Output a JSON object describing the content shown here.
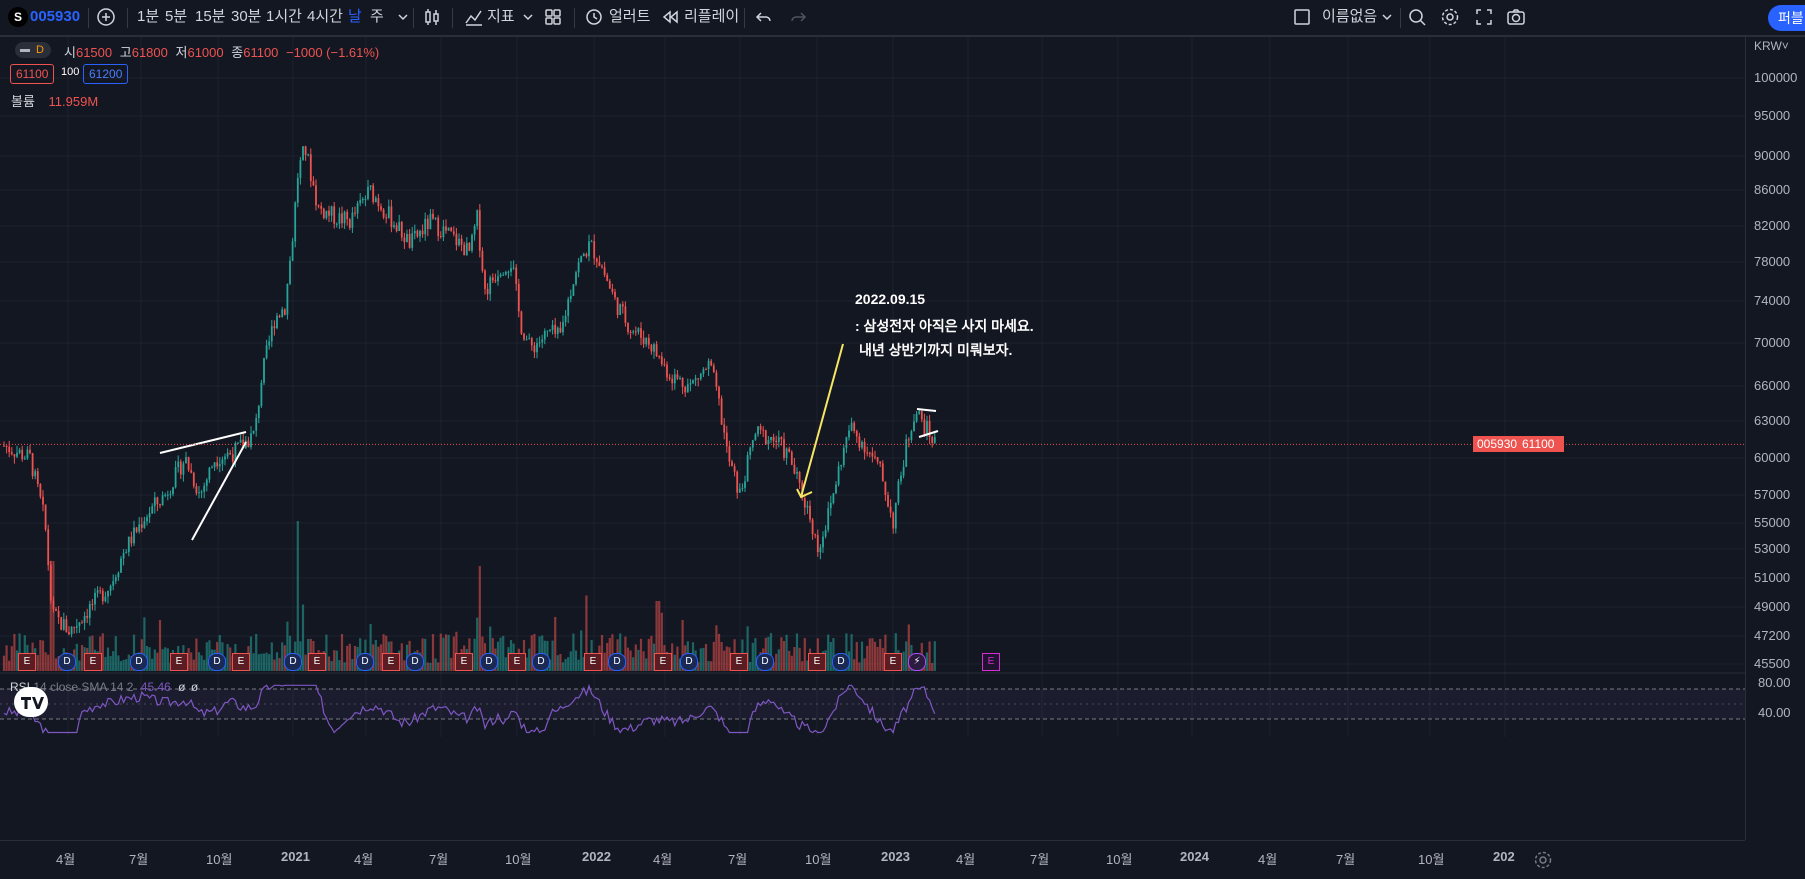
{
  "toolbar": {
    "symbol_logo": "S",
    "symbol": "005930",
    "timeframes": [
      "1분",
      "5분",
      "15분",
      "30분",
      "1시간",
      "4시간",
      "날",
      "주"
    ],
    "indicators_label": "지표",
    "alert_label": "얼러트",
    "replay_label": "리플레이",
    "layout_name": "이름없음",
    "publish_label": "퍼블"
  },
  "legend": {
    "o_label": "시",
    "o": "61500",
    "h_label": "고",
    "h": "61800",
    "l_label": "저",
    "l": "61000",
    "c_label": "종",
    "c": "61100",
    "change": "−1000 (−1.61%)",
    "bid": "61100",
    "spread": "100",
    "ask": "61200",
    "volume_label": "볼륨",
    "volume": "11.959M",
    "interval_badge": "D"
  },
  "annotation": {
    "line1": "2022.09.15",
    "line2": ": 삼성전자 아직은 사지 마세요.",
    "line3": "내년 상반기까지 미뤄보자."
  },
  "price_axis": {
    "currency": "KRW",
    "ticks": [
      "100000",
      "95000",
      "90000",
      "86000",
      "82000",
      "78000",
      "74000",
      "70000",
      "66000",
      "63000",
      "60000",
      "57000",
      "55000",
      "53000",
      "51000",
      "49000",
      "47200",
      "45500"
    ],
    "last_symbol": "005930",
    "last_price": "61100"
  },
  "rsi": {
    "label": "RSI",
    "params": "14 close SMA 14 2",
    "value": "45.46",
    "extra1": "ø",
    "extra2": "ø",
    "ticks": [
      "80.00",
      "40.00"
    ]
  },
  "time_axis": [
    "4월",
    "7월",
    "10월",
    "2021",
    "4월",
    "7월",
    "10월",
    "2022",
    "4월",
    "7월",
    "10월",
    "2023",
    "4월",
    "7월",
    "10월",
    "2024",
    "4월",
    "7월",
    "10월",
    "202"
  ],
  "events": [
    "E",
    "D",
    "E",
    "D",
    "E",
    "D",
    "E",
    "D",
    "E",
    "D",
    "E",
    "D",
    "E",
    "D",
    "E",
    "D",
    "E",
    "D",
    "E",
    "D",
    "E",
    "D",
    "E",
    "D",
    "E",
    "⚡",
    "E"
  ],
  "colors": {
    "background": "#131722",
    "up": "#26a69a",
    "down": "#ef5350",
    "accent": "#2962ff",
    "rsi_line": "#7e57c2",
    "annotation_arrow": "#f5e663"
  },
  "chart_data": {
    "type": "candlestick",
    "currency": "KRW",
    "ylim": [
      45500,
      100000
    ],
    "x": [
      "2020-04",
      "2020-07",
      "2020-10",
      "2021-01",
      "2021-04",
      "2021-07",
      "2021-10",
      "2022-01",
      "2022-04",
      "2022-07",
      "2022-10",
      "2023-01",
      "2023-03"
    ],
    "close": [
      49000,
      55000,
      59000,
      88000,
      83000,
      79000,
      70000,
      78000,
      67000,
      58000,
      56000,
      61000,
      61100
    ],
    "rsi": [
      40,
      55,
      60,
      85,
      55,
      45,
      40,
      60,
      45,
      35,
      45,
      65,
      45.46
    ]
  }
}
